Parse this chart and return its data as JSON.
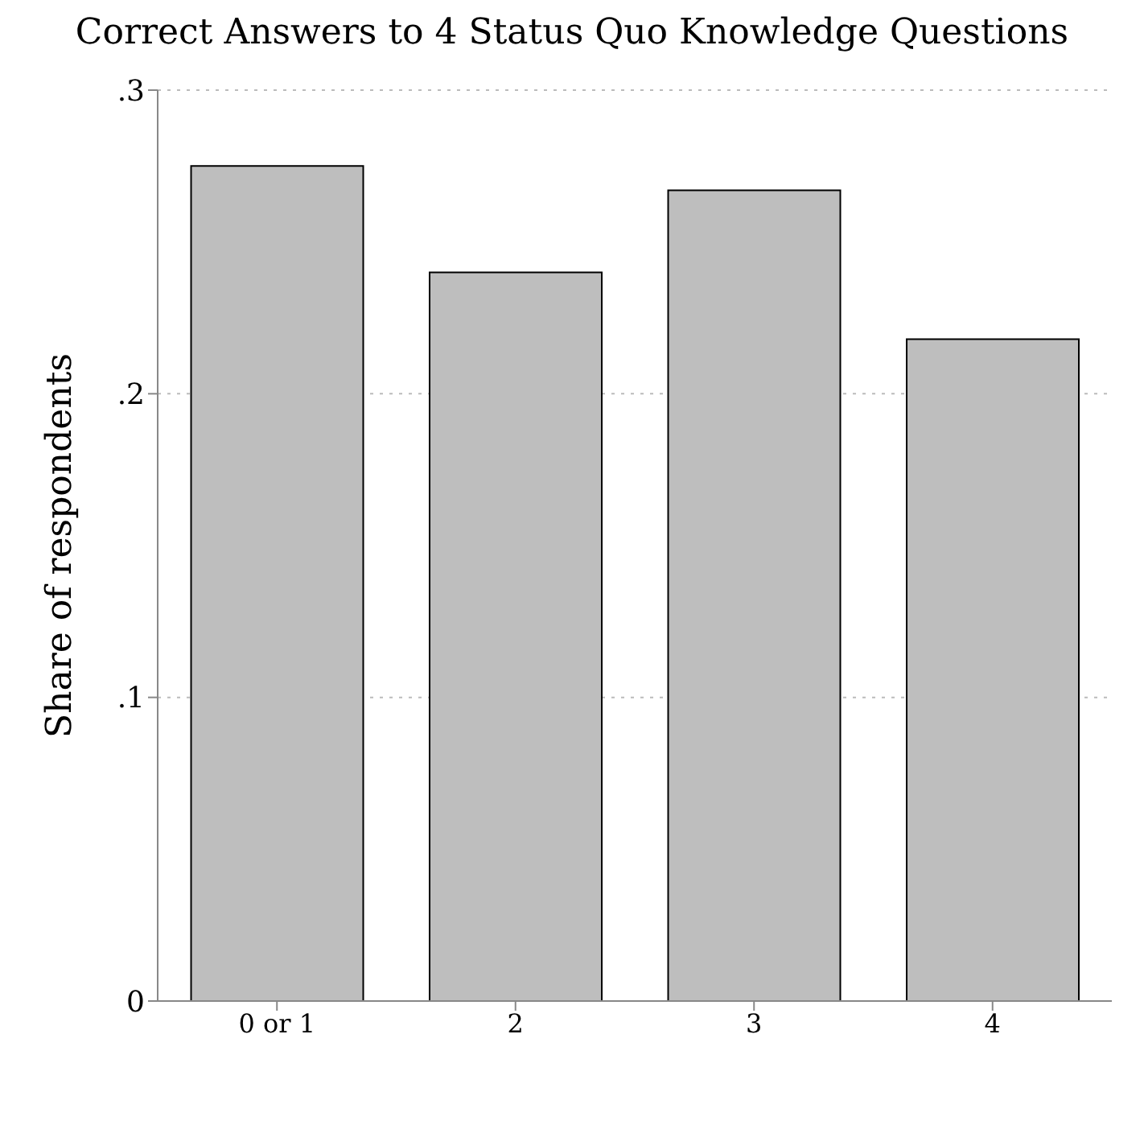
{
  "chart_data": {
    "type": "bar",
    "title": "Correct Answers to 4 Status Quo Knowledge Questions",
    "ylabel": "Share of respondents",
    "categories": [
      "0 or 1",
      "2",
      "3",
      "4"
    ],
    "values": [
      0.275,
      0.24,
      0.267,
      0.218
    ],
    "color": "#bebebe",
    "ylim": [
      0,
      0.3
    ],
    "yticks": [
      {
        "value": 0,
        "label": "0"
      },
      {
        "value": 0.1,
        "label": ".1"
      },
      {
        "value": 0.2,
        "label": ".2"
      },
      {
        "value": 0.3,
        "label": ".3"
      }
    ],
    "grid": "y",
    "legend": false
  }
}
